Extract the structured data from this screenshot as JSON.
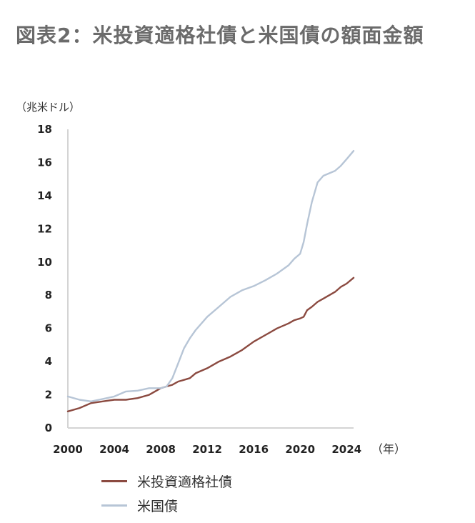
{
  "title": "図表2：米投資適格社債と米国債の額面金額",
  "chart_data": {
    "type": "line",
    "ylabel": "（兆米ドル）",
    "xlabel": "（年）",
    "ylim": [
      0,
      18
    ],
    "xlim": [
      2000,
      2024.6
    ],
    "yticks": [
      0,
      2,
      4,
      6,
      8,
      10,
      12,
      14,
      16,
      18
    ],
    "xticks": [
      2000,
      2004,
      2008,
      2012,
      2016,
      2020,
      2024
    ],
    "x": [
      2000,
      2001,
      2002,
      2003,
      2004,
      2005,
      2006,
      2007,
      2008,
      2008.5,
      2009,
      2009.5,
      2010,
      2010.5,
      2011,
      2012,
      2013,
      2014,
      2015,
      2016,
      2017,
      2018,
      2019,
      2019.5,
      2020,
      2020.3,
      2020.6,
      2021,
      2021.5,
      2022,
      2023,
      2023.5,
      2024,
      2024.6
    ],
    "series": [
      {
        "name": "米投資適格社債",
        "color": "#8b4a40",
        "values": [
          1.0,
          1.2,
          1.5,
          1.6,
          1.7,
          1.7,
          1.8,
          2.0,
          2.4,
          2.5,
          2.6,
          2.8,
          2.9,
          3.0,
          3.3,
          3.6,
          4.0,
          4.3,
          4.7,
          5.2,
          5.6,
          6.0,
          6.3,
          6.5,
          6.6,
          6.7,
          7.1,
          7.3,
          7.6,
          7.8,
          8.2,
          8.5,
          8.7,
          9.05
        ]
      },
      {
        "name": "米国債",
        "color": "#b7c5d6",
        "values": [
          1.9,
          1.7,
          1.6,
          1.75,
          1.9,
          2.2,
          2.25,
          2.4,
          2.4,
          2.5,
          3.0,
          3.9,
          4.8,
          5.4,
          5.9,
          6.7,
          7.3,
          7.9,
          8.3,
          8.55,
          8.9,
          9.3,
          9.8,
          10.2,
          10.5,
          11.2,
          12.3,
          13.6,
          14.8,
          15.2,
          15.5,
          15.8,
          16.2,
          16.7
        ]
      }
    ]
  }
}
